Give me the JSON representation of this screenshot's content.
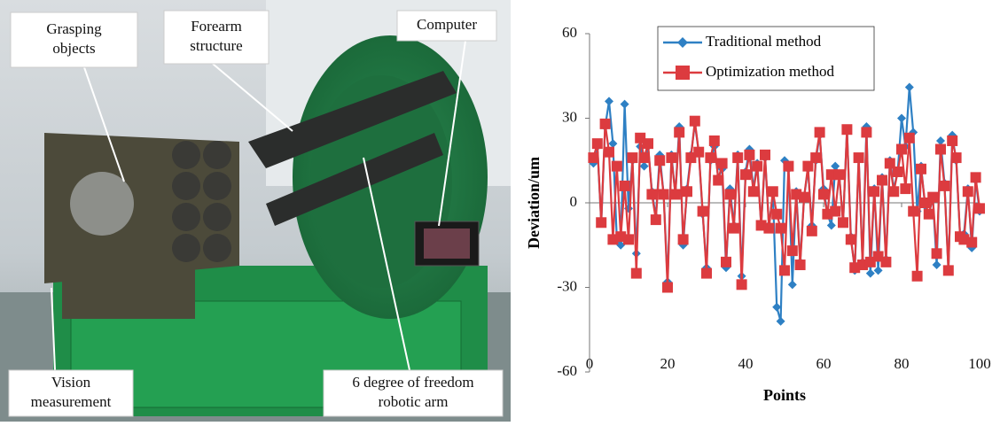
{
  "photo": {
    "labels": [
      {
        "lines": [
          "Grasping",
          "objects"
        ]
      },
      {
        "lines": [
          "Forearm",
          "structure"
        ]
      },
      {
        "lines": [
          "Computer"
        ]
      },
      {
        "lines": [
          "Vision",
          "measurement"
        ]
      },
      {
        "lines": [
          "6 degree of freedom",
          "robotic arm"
        ]
      }
    ]
  },
  "chart_data": {
    "type": "line",
    "x_label": "Points",
    "y_label": "Deviation/um",
    "x": [
      1,
      2,
      3,
      4,
      5,
      6,
      7,
      8,
      9,
      10,
      11,
      12,
      13,
      14,
      15,
      16,
      17,
      18,
      19,
      20,
      21,
      22,
      23,
      24,
      25,
      26,
      27,
      28,
      29,
      30,
      31,
      32,
      33,
      34,
      35,
      36,
      37,
      38,
      39,
      40,
      41,
      42,
      43,
      44,
      45,
      46,
      47,
      48,
      49,
      50,
      51,
      52,
      53,
      54,
      55,
      56,
      57,
      58,
      59,
      60,
      61,
      62,
      63,
      64,
      65,
      66,
      67,
      68,
      69,
      70,
      71,
      72,
      73,
      74,
      75,
      76,
      77,
      78,
      79,
      80,
      81,
      82,
      83,
      84,
      85,
      86,
      87,
      88,
      89,
      90,
      91,
      92,
      93,
      94,
      95,
      96,
      97,
      98,
      99,
      100
    ],
    "series": [
      {
        "name": "Traditional method",
        "color": "#2e80c4",
        "marker": "diamond",
        "values": [
          14,
          20,
          -7,
          27,
          36,
          21,
          -13,
          -15,
          35,
          -2,
          15,
          -18,
          20,
          13,
          20,
          4,
          -5,
          17,
          3,
          -28,
          17,
          3,
          27,
          -15,
          5,
          17,
          28,
          18,
          -4,
          -23,
          15,
          20,
          9,
          12,
          -23,
          5,
          -8,
          17,
          -26,
          11,
          19,
          5,
          14,
          -8,
          16,
          -8,
          3,
          -37,
          -42,
          15,
          12,
          -29,
          4,
          -21,
          2,
          12,
          -8,
          15,
          24,
          5,
          -4,
          -8,
          13,
          10,
          -7,
          26,
          -12,
          -24,
          16,
          -21,
          27,
          -25,
          5,
          -24,
          9,
          -20,
          15,
          5,
          11,
          30,
          20,
          41,
          25,
          -3,
          13,
          -1,
          -4,
          2,
          -22,
          22,
          7,
          -24,
          24,
          15,
          -12,
          -11,
          5,
          -16,
          8,
          -3
        ]
      },
      {
        "name": "Optimization method",
        "color": "#dc3b3f",
        "marker": "square",
        "values": [
          16,
          21,
          -7,
          28,
          18,
          -13,
          13,
          -12,
          6,
          -13,
          16,
          -25,
          23,
          16,
          21,
          3,
          -6,
          15,
          3,
          -30,
          16,
          3,
          25,
          -13,
          4,
          16,
          29,
          18,
          -3,
          -25,
          16,
          22,
          8,
          14,
          -21,
          3,
          -9,
          16,
          -29,
          10,
          17,
          4,
          13,
          -8,
          17,
          -9,
          4,
          -4,
          -9,
          -24,
          13,
          -17,
          3,
          -22,
          2,
          13,
          -10,
          16,
          25,
          3,
          -4,
          10,
          -3,
          10,
          -7,
          26,
          -13,
          -23,
          16,
          -22,
          25,
          -21,
          4,
          -19,
          8,
          -21,
          14,
          4,
          11,
          19,
          5,
          23,
          -3,
          -26,
          12,
          0,
          -4,
          2,
          -18,
          19,
          6,
          -24,
          22,
          16,
          -12,
          -13,
          4,
          -14,
          9,
          -2
        ]
      }
    ],
    "xlim": [
      0,
      100
    ],
    "xticks": [
      0,
      20,
      40,
      60,
      80,
      100
    ],
    "ylim": [
      -60,
      60
    ],
    "yticks": [
      60,
      30,
      0,
      -30,
      -60
    ],
    "legend": "top-left"
  }
}
